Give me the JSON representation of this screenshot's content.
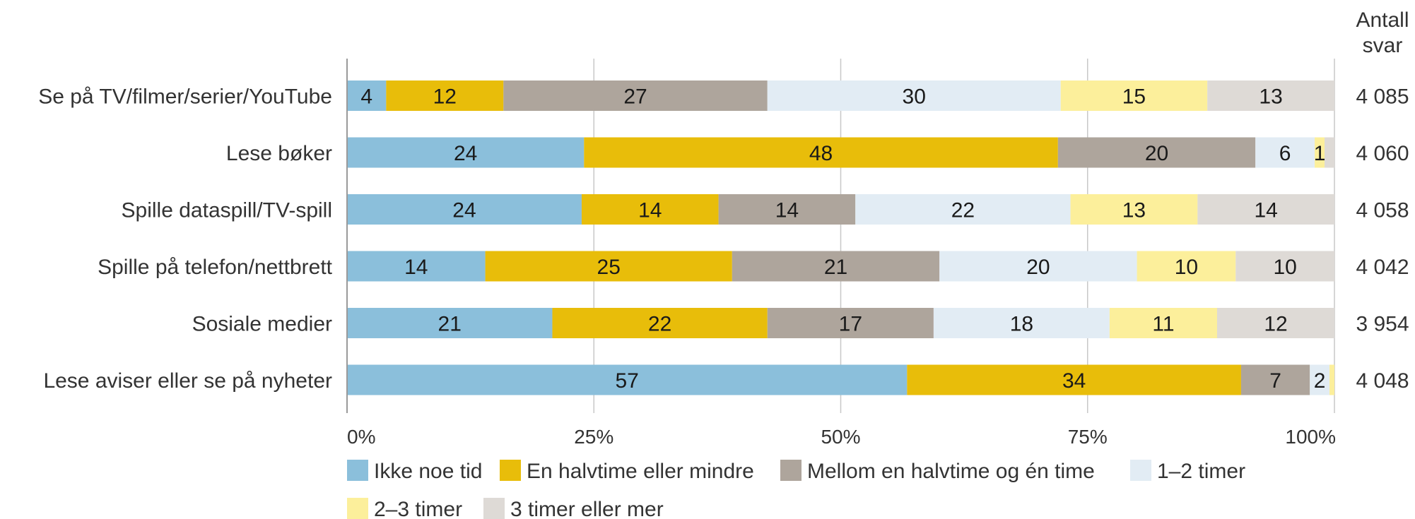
{
  "chart_data": {
    "type": "bar",
    "orientation": "horizontal",
    "stacked": true,
    "count_header": [
      "Antall",
      "svar"
    ],
    "categories": [
      "Se på TV/filmer/serier/YouTube",
      "Lese bøker",
      "Spille dataspill/TV-spill",
      "Spille på telefon/nettbrett",
      "Sosiale medier",
      "Lese aviser eller se på nyheter"
    ],
    "counts": [
      "4 085",
      "4 060",
      "4 058",
      "4 042",
      "3 954",
      "4 048"
    ],
    "x_ticks": [
      "0%",
      "25%",
      "50%",
      "75%",
      "100%"
    ],
    "xlim": [
      0,
      100
    ],
    "grid": true,
    "legend_position": "bottom",
    "series": [
      {
        "name": "Ikke noe tid",
        "color": "#8bbfdb",
        "values": [
          4,
          24,
          24,
          14,
          21,
          57
        ]
      },
      {
        "name": "En halvtime eller mindre",
        "color": "#e8bd0a",
        "values": [
          12,
          48,
          14,
          25,
          22,
          34
        ]
      },
      {
        "name": "Mellom en halvtime og én time",
        "color": "#aea59c",
        "values": [
          27,
          20,
          14,
          21,
          17,
          7
        ]
      },
      {
        "name": "1–2 timer",
        "color": "#e2ecf4",
        "values": [
          30,
          6,
          22,
          20,
          18,
          2
        ]
      },
      {
        "name": "2–3 timer",
        "color": "#fcef9b",
        "values": [
          15,
          1,
          13,
          10,
          11,
          0.5
        ]
      },
      {
        "name": "3 timer eller mer",
        "color": "#dedad6",
        "values": [
          13,
          1,
          14,
          10,
          12,
          0
        ]
      }
    ],
    "shown_labels": [
      [
        "4",
        "12",
        "27",
        "30",
        "15",
        "13"
      ],
      [
        "24",
        "48",
        "20",
        "6",
        "1",
        ""
      ],
      [
        "24",
        "14",
        "14",
        "22",
        "13",
        "14"
      ],
      [
        "14",
        "25",
        "21",
        "20",
        "10",
        "10"
      ],
      [
        "21",
        "22",
        "17",
        "18",
        "11",
        "12"
      ],
      [
        "57",
        "34",
        "7",
        "2",
        "",
        ""
      ]
    ]
  }
}
